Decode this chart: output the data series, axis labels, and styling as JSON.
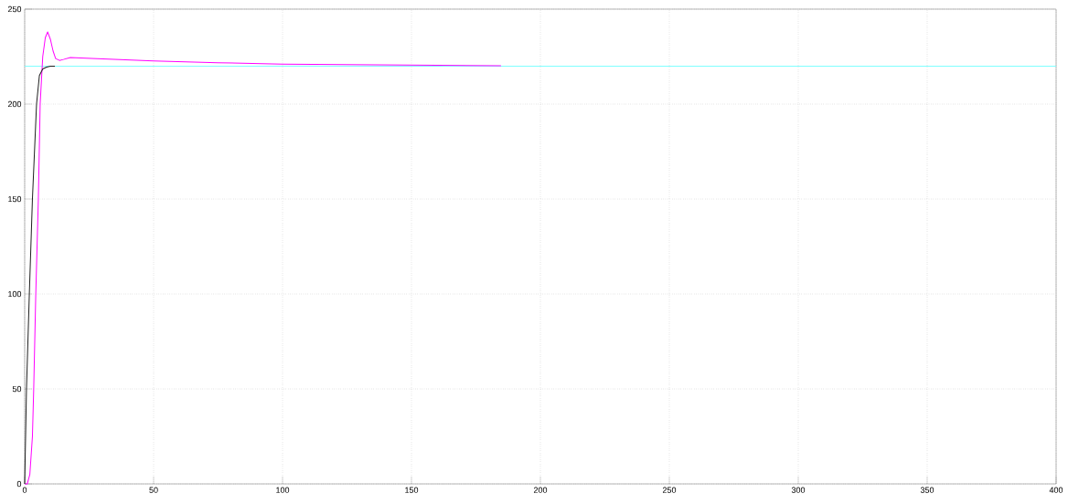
{
  "chart_data": {
    "type": "line",
    "xlim": [
      0,
      400
    ],
    "ylim": [
      0,
      250
    ],
    "xticks": [
      0,
      50,
      100,
      150,
      200,
      250,
      300,
      350,
      400
    ],
    "yticks": [
      0,
      50,
      100,
      150,
      200,
      250
    ],
    "grid": true,
    "marker": "none",
    "series": [
      {
        "color": "#80ffff",
        "x": [
          0,
          400
        ],
        "values": [
          220,
          220
        ]
      },
      {
        "color": "#ff00ff",
        "x": [
          0,
          1,
          2,
          3,
          3.5,
          4.3,
          5.3,
          6,
          7,
          8,
          8.9,
          10,
          11,
          12,
          13.5,
          15,
          17.7,
          26,
          50,
          75,
          100,
          136,
          160,
          184.7
        ],
        "values": [
          0,
          0,
          5,
          25,
          50,
          100,
          150,
          200,
          225,
          235,
          238,
          234,
          228,
          224,
          223,
          223.5,
          224.5,
          224,
          222.7,
          221.8,
          221,
          220.7,
          220.4,
          220.2
        ]
      },
      {
        "color": "#202020",
        "x": [
          0,
          0.7,
          1.8,
          3,
          4.6,
          5.7,
          7,
          8.5,
          10,
          11.7
        ],
        "values": [
          0,
          50,
          100,
          150,
          200,
          215,
          218.5,
          219.5,
          220,
          220
        ]
      }
    ]
  }
}
